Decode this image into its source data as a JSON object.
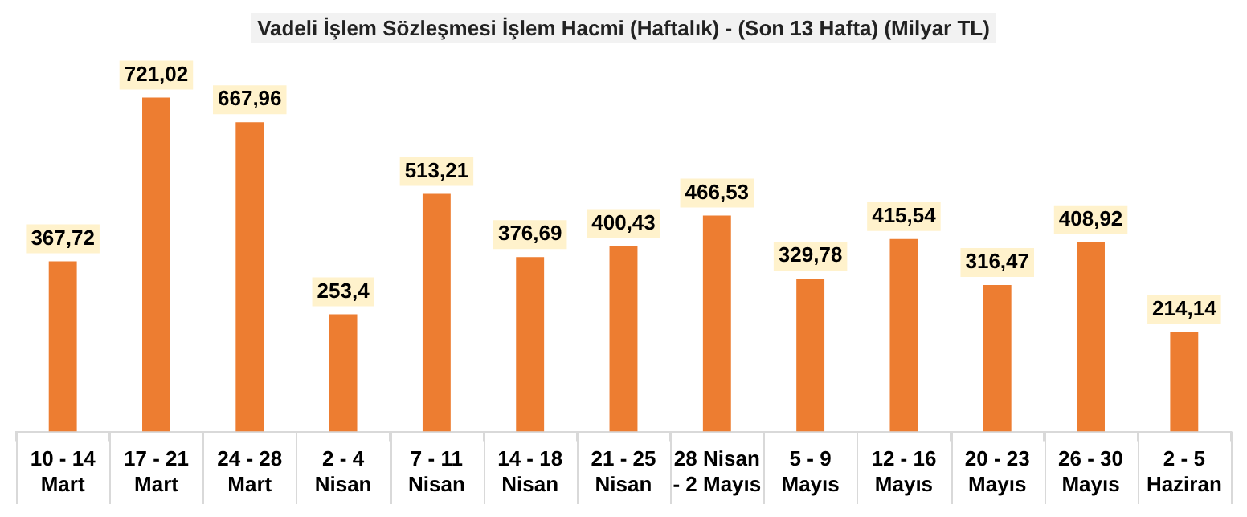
{
  "chart_data": {
    "type": "bar",
    "title": "Vadeli İşlem Sözleşmesi İşlem Hacmi (Haftalık) - (Son 13 Hafta) (Milyar TL)",
    "categories": [
      "10 - 14\nMart",
      "17 - 21\nMart",
      "24 - 28\nMart",
      "2 - 4\nNisan",
      "7 - 11\nNisan",
      "14 - 18\nNisan",
      "21 - 25\nNisan",
      "28 Nisan\n- 2 Mayıs",
      "5 - 9\nMayıs",
      "12 - 16\nMayıs",
      "20 - 23\nMayıs",
      "26 - 30\nMayıs",
      "2 - 5\nHaziran"
    ],
    "values": [
      367.72,
      721.02,
      667.96,
      253.4,
      513.21,
      376.69,
      400.43,
      466.53,
      329.78,
      415.54,
      316.47,
      408.92,
      214.14
    ],
    "value_labels": [
      "367,72",
      "721,02",
      "667,96",
      "253,4",
      "513,21",
      "376,69",
      "400,43",
      "466,53",
      "329,78",
      "415,54",
      "316,47",
      "408,92",
      "214,14"
    ],
    "color": "#ed7d31",
    "grid": false,
    "legend": false
  }
}
